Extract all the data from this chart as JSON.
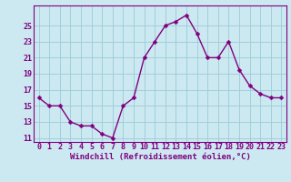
{
  "x": [
    0,
    1,
    2,
    3,
    4,
    5,
    6,
    7,
    8,
    9,
    10,
    11,
    12,
    13,
    14,
    15,
    16,
    17,
    18,
    19,
    20,
    21,
    22,
    23
  ],
  "y": [
    16,
    15,
    15,
    13,
    12.5,
    12.5,
    11.5,
    11,
    15,
    16,
    21,
    23,
    25,
    25.5,
    26.3,
    24,
    21,
    21,
    23,
    19.5,
    17.5,
    16.5,
    16,
    16
  ],
  "line_color": "#800080",
  "marker": "D",
  "marker_size": 2.5,
  "background_color": "#cce8f0",
  "grid_color": "#99ccd9",
  "xlabel": "Windchill (Refroidissement éolien,°C)",
  "ylim": [
    10.5,
    27.5
  ],
  "xlim": [
    -0.5,
    23.5
  ],
  "yticks": [
    11,
    13,
    15,
    17,
    19,
    21,
    23,
    25
  ],
  "xticks": [
    0,
    1,
    2,
    3,
    4,
    5,
    6,
    7,
    8,
    9,
    10,
    11,
    12,
    13,
    14,
    15,
    16,
    17,
    18,
    19,
    20,
    21,
    22,
    23
  ],
  "xlabel_fontsize": 6.5,
  "tick_fontsize": 6,
  "line_width": 1.0,
  "spine_color": "#800080"
}
